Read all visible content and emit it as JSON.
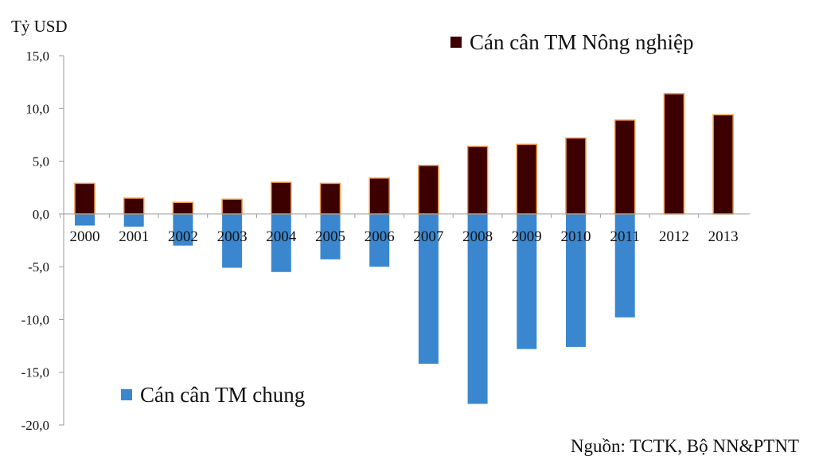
{
  "chart_data": {
    "type": "bar",
    "ylabel": "Tỷ USD",
    "ylim": [
      -20,
      15
    ],
    "yticks": [
      "15,0",
      "10,0",
      "5,0",
      "0,0",
      "-5,0",
      "-10,0",
      "-15,0",
      "-20,0"
    ],
    "categories": [
      "2000",
      "2001",
      "2002",
      "2003",
      "2004",
      "2005",
      "2006",
      "2007",
      "2008",
      "2009",
      "2010",
      "2011",
      "2012",
      "2013"
    ],
    "series": [
      {
        "name": "Cán cân TM Nông nghiệp",
        "color": "#3d0000",
        "values": [
          2.9,
          1.5,
          1.1,
          1.4,
          3.0,
          2.9,
          3.4,
          4.6,
          6.4,
          6.6,
          7.2,
          8.9,
          11.4,
          9.4
        ]
      },
      {
        "name": "Cán cân TM chung",
        "color": "#3b87cf",
        "values": [
          -1.1,
          -1.2,
          -3.0,
          -5.1,
          -5.5,
          -4.3,
          -5.0,
          -14.2,
          -18.0,
          -12.8,
          -12.6,
          -9.8,
          0.7,
          0.8
        ]
      }
    ],
    "legend_placement": [
      "top-right",
      "bottom-left"
    ],
    "grid": false,
    "source": "Nguồn: TCTK, Bộ NN&PTNT"
  }
}
